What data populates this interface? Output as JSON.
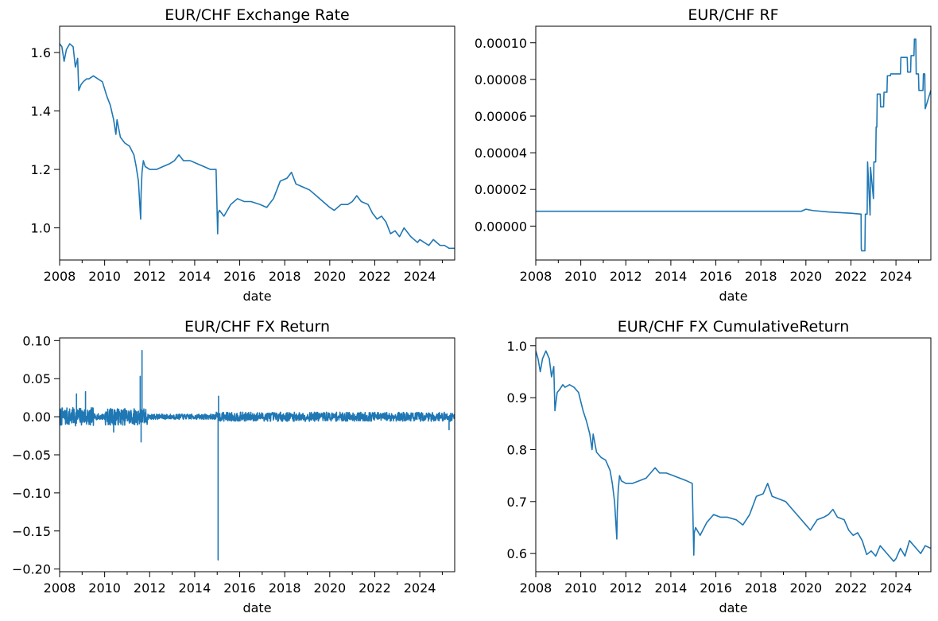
{
  "chart_data": [
    {
      "type": "line",
      "title": "EUR/CHF Exchange Rate",
      "xlabel": "date",
      "ylabel": "",
      "xlim": [
        2008.0,
        2025.55
      ],
      "ylim": [
        0.89,
        1.69
      ],
      "x_ticks": [
        2008,
        2010,
        2012,
        2014,
        2016,
        2018,
        2020,
        2022,
        2024
      ],
      "x_tick_labels": [
        "2008",
        "2010",
        "2012",
        "2014",
        "2016",
        "2018",
        "2020",
        "2022",
        "2024"
      ],
      "y_ticks": [
        1.0,
        1.2,
        1.4,
        1.6
      ],
      "y_tick_labels": [
        "1.0",
        "1.2",
        "1.4",
        "1.6"
      ],
      "series": [
        {
          "name": "EUR/CHF",
          "color": "#1f77b4",
          "x": [
            2008.0,
            2008.1,
            2008.2,
            2008.3,
            2008.45,
            2008.6,
            2008.7,
            2008.8,
            2008.85,
            2008.95,
            2009.05,
            2009.2,
            2009.3,
            2009.5,
            2009.7,
            2009.9,
            2010.1,
            2010.25,
            2010.4,
            2010.5,
            2010.55,
            2010.7,
            2010.9,
            2011.1,
            2011.3,
            2011.4,
            2011.5,
            2011.6,
            2011.62,
            2011.66,
            2011.72,
            2011.8,
            2012.0,
            2012.3,
            2012.6,
            2012.9,
            2013.1,
            2013.3,
            2013.5,
            2013.8,
            2014.1,
            2014.4,
            2014.7,
            2014.95,
            2015.02,
            2015.04,
            2015.1,
            2015.3,
            2015.6,
            2015.9,
            2016.2,
            2016.5,
            2016.9,
            2017.2,
            2017.5,
            2017.8,
            2018.1,
            2018.3,
            2018.5,
            2018.8,
            2019.1,
            2019.4,
            2019.7,
            2020.0,
            2020.2,
            2020.5,
            2020.8,
            2021.0,
            2021.2,
            2021.4,
            2021.7,
            2021.9,
            2022.1,
            2022.3,
            2022.5,
            2022.7,
            2022.9,
            2023.1,
            2023.3,
            2023.6,
            2023.9,
            2024.0,
            2024.2,
            2024.4,
            2024.6,
            2024.9,
            2025.1,
            2025.3,
            2025.55
          ],
          "y": [
            1.63,
            1.62,
            1.57,
            1.61,
            1.63,
            1.62,
            1.55,
            1.58,
            1.47,
            1.49,
            1.5,
            1.51,
            1.51,
            1.52,
            1.51,
            1.5,
            1.45,
            1.42,
            1.37,
            1.32,
            1.37,
            1.31,
            1.29,
            1.28,
            1.25,
            1.21,
            1.16,
            1.03,
            1.12,
            1.19,
            1.23,
            1.21,
            1.2,
            1.2,
            1.21,
            1.22,
            1.23,
            1.25,
            1.23,
            1.23,
            1.22,
            1.21,
            1.2,
            1.2,
            0.98,
            1.05,
            1.06,
            1.04,
            1.08,
            1.1,
            1.09,
            1.09,
            1.08,
            1.07,
            1.1,
            1.16,
            1.17,
            1.19,
            1.15,
            1.14,
            1.13,
            1.11,
            1.09,
            1.07,
            1.06,
            1.08,
            1.08,
            1.09,
            1.11,
            1.09,
            1.08,
            1.05,
            1.03,
            1.04,
            1.02,
            0.98,
            0.99,
            0.97,
            1.0,
            0.97,
            0.95,
            0.96,
            0.95,
            0.94,
            0.96,
            0.94,
            0.94,
            0.93,
            0.93
          ]
        }
      ]
    },
    {
      "type": "line",
      "title": "EUR/CHF RF",
      "xlabel": "date",
      "ylabel": "",
      "xlim": [
        2008.0,
        2025.55
      ],
      "ylim": [
        -1.85e-05,
        0.000109
      ],
      "x_ticks": [
        2008,
        2010,
        2012,
        2014,
        2016,
        2018,
        2020,
        2022,
        2024
      ],
      "x_tick_labels": [
        "2008",
        "2010",
        "2012",
        "2014",
        "2016",
        "2018",
        "2020",
        "2022",
        "2024"
      ],
      "y_ticks": [
        0.0,
        2e-05,
        4e-05,
        6e-05,
        8e-05,
        0.0001
      ],
      "y_tick_labels": [
        "0.00000",
        "0.00002",
        "0.00004",
        "0.00006",
        "0.00008",
        "0.00010"
      ],
      "series": [
        {
          "name": "RF",
          "color": "#1f77b4",
          "x": [
            2008.0,
            2019.8,
            2020.0,
            2020.3,
            2021.0,
            2022.0,
            2022.45,
            2022.46,
            2022.48,
            2022.62,
            2022.64,
            2022.72,
            2022.74,
            2022.85,
            2022.87,
            2023.0,
            2023.02,
            2023.1,
            2023.12,
            2023.15,
            2023.17,
            2023.3,
            2023.32,
            2023.45,
            2023.47,
            2023.6,
            2023.62,
            2023.75,
            2023.77,
            2024.0,
            2024.2,
            2024.22,
            2024.5,
            2024.52,
            2024.65,
            2024.67,
            2024.8,
            2024.82,
            2024.88,
            2024.9,
            2025.0,
            2025.02,
            2025.2,
            2025.22,
            2025.28,
            2025.3,
            2025.55
          ],
          "y": [
            8.1e-06,
            8.1e-06,
            9.2e-06,
            8.5e-06,
            7.7e-06,
            7e-06,
            6.5e-06,
            -1.25e-05,
            -1.35e-05,
            -1.35e-05,
            6.5e-06,
            6.5e-06,
            3.5e-05,
            6e-06,
            3.2e-05,
            1.5e-05,
            3.5e-05,
            3.5e-05,
            5.4e-05,
            5.4e-05,
            7.2e-05,
            7.2e-05,
            6.5e-05,
            6.5e-05,
            7.3e-05,
            7.3e-05,
            8.2e-05,
            8.2e-05,
            8.3e-05,
            8.3e-05,
            8.3e-05,
            9.2e-05,
            9.2e-05,
            8.4e-05,
            8.4e-05,
            9.3e-05,
            9.3e-05,
            0.000102,
            0.000102,
            8.3e-05,
            8.3e-05,
            7.4e-05,
            7.4e-05,
            8.3e-05,
            8.3e-05,
            6.4e-05,
            7.4e-05
          ]
        }
      ]
    },
    {
      "type": "line",
      "title": "EUR/CHF FX Return",
      "xlabel": "date",
      "ylabel": "",
      "xlim": [
        2008.0,
        2025.55
      ],
      "ylim": [
        -0.2035,
        0.1035
      ],
      "x_ticks": [
        2008,
        2010,
        2012,
        2014,
        2016,
        2018,
        2020,
        2022,
        2024
      ],
      "x_tick_labels": [
        "2008",
        "2010",
        "2012",
        "2014",
        "2016",
        "2018",
        "2020",
        "2022",
        "2024"
      ],
      "y_ticks": [
        -0.2,
        -0.15,
        -0.1,
        -0.05,
        0.0,
        0.05,
        0.1
      ],
      "y_tick_labels": [
        "−0.20",
        "−0.15",
        "−0.10",
        "−0.05",
        "0.00",
        "0.05",
        "0.10"
      ],
      "noise": {
        "seed": 7,
        "step_years": 0.012,
        "base_amplitude": 0.008
      },
      "volatility_regimes": [
        {
          "from": 2008.0,
          "to": 2009.5,
          "amplitude": 0.012
        },
        {
          "from": 2009.5,
          "to": 2010.0,
          "amplitude": 0.004
        },
        {
          "from": 2010.0,
          "to": 2011.9,
          "amplitude": 0.011
        },
        {
          "from": 2011.9,
          "to": 2014.95,
          "amplitude": 0.0035
        },
        {
          "from": 2014.95,
          "to": 2025.55,
          "amplitude": 0.006
        }
      ],
      "spikes": [
        {
          "x": 2008.75,
          "y": 0.03
        },
        {
          "x": 2009.15,
          "y": 0.033
        },
        {
          "x": 2010.4,
          "y": -0.02
        },
        {
          "x": 2011.58,
          "y": 0.053
        },
        {
          "x": 2011.62,
          "y": -0.033
        },
        {
          "x": 2011.66,
          "y": 0.087
        },
        {
          "x": 2015.04,
          "y": -0.188
        },
        {
          "x": 2015.06,
          "y": 0.027
        },
        {
          "x": 2025.3,
          "y": -0.017
        }
      ]
    },
    {
      "type": "line",
      "title": "EUR/CHF FX CumulativeReturn",
      "xlabel": "date",
      "ylabel": "",
      "xlim": [
        2008.0,
        2025.55
      ],
      "ylim": [
        0.565,
        1.015
      ],
      "x_ticks": [
        2008,
        2010,
        2012,
        2014,
        2016,
        2018,
        2020,
        2022,
        2024
      ],
      "x_tick_labels": [
        "2008",
        "2010",
        "2012",
        "2014",
        "2016",
        "2018",
        "2020",
        "2022",
        "2024"
      ],
      "y_ticks": [
        0.6,
        0.7,
        0.8,
        0.9,
        1.0
      ],
      "y_tick_labels": [
        "0.6",
        "0.7",
        "0.8",
        "0.9",
        "1.0"
      ],
      "series": [
        {
          "name": "CumulativeReturn",
          "color": "#1f77b4",
          "x": [
            2008.0,
            2008.1,
            2008.2,
            2008.3,
            2008.45,
            2008.6,
            2008.7,
            2008.8,
            2008.85,
            2008.95,
            2009.05,
            2009.2,
            2009.3,
            2009.5,
            2009.7,
            2009.9,
            2010.1,
            2010.25,
            2010.4,
            2010.5,
            2010.55,
            2010.7,
            2010.9,
            2011.1,
            2011.3,
            2011.4,
            2011.5,
            2011.6,
            2011.62,
            2011.66,
            2011.72,
            2011.8,
            2012.0,
            2012.3,
            2012.6,
            2012.9,
            2013.1,
            2013.3,
            2013.5,
            2013.8,
            2014.1,
            2014.4,
            2014.7,
            2014.95,
            2015.02,
            2015.04,
            2015.1,
            2015.3,
            2015.6,
            2015.9,
            2016.2,
            2016.5,
            2016.9,
            2017.2,
            2017.5,
            2017.8,
            2018.1,
            2018.3,
            2018.5,
            2018.8,
            2019.1,
            2019.4,
            2019.7,
            2020.0,
            2020.2,
            2020.5,
            2020.8,
            2021.0,
            2021.2,
            2021.4,
            2021.7,
            2021.9,
            2022.1,
            2022.3,
            2022.5,
            2022.7,
            2022.9,
            2023.1,
            2023.3,
            2023.6,
            2023.9,
            2024.0,
            2024.2,
            2024.4,
            2024.6,
            2024.9,
            2025.1,
            2025.3,
            2025.55
          ],
          "y": [
            0.99,
            0.975,
            0.95,
            0.975,
            0.99,
            0.975,
            0.94,
            0.96,
            0.875,
            0.91,
            0.915,
            0.925,
            0.92,
            0.925,
            0.92,
            0.91,
            0.875,
            0.855,
            0.83,
            0.8,
            0.83,
            0.795,
            0.785,
            0.78,
            0.76,
            0.735,
            0.7,
            0.628,
            0.68,
            0.72,
            0.75,
            0.74,
            0.735,
            0.735,
            0.74,
            0.745,
            0.755,
            0.765,
            0.755,
            0.755,
            0.75,
            0.745,
            0.74,
            0.735,
            0.597,
            0.64,
            0.65,
            0.635,
            0.66,
            0.675,
            0.67,
            0.67,
            0.665,
            0.655,
            0.675,
            0.71,
            0.715,
            0.735,
            0.71,
            0.705,
            0.7,
            0.685,
            0.67,
            0.655,
            0.645,
            0.665,
            0.67,
            0.675,
            0.685,
            0.67,
            0.665,
            0.645,
            0.635,
            0.64,
            0.625,
            0.598,
            0.605,
            0.595,
            0.615,
            0.6,
            0.585,
            0.59,
            0.61,
            0.595,
            0.625,
            0.61,
            0.6,
            0.615,
            0.61
          ]
        }
      ]
    }
  ]
}
